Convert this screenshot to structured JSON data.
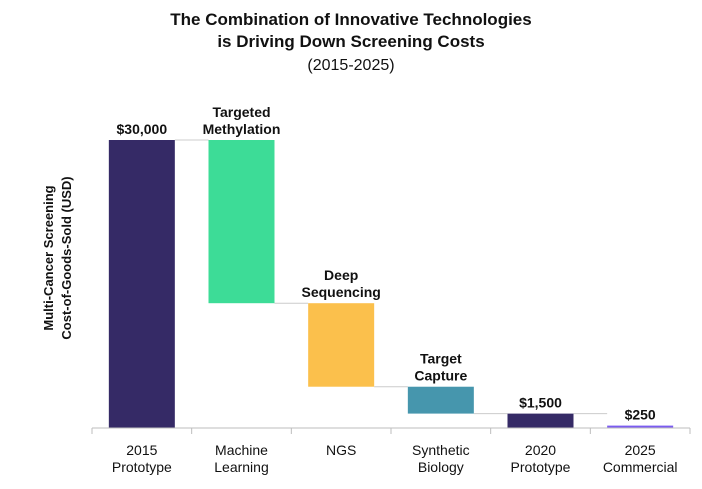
{
  "chart_data": {
    "type": "bar",
    "subtype": "waterfall",
    "title": [
      "The Combination of Innovative Technologies",
      "is Driving Down Screening Costs"
    ],
    "subtitle": "(2015-2025)",
    "ylabel": [
      "Multi-Cancer Screening",
      "Cost-of-Goods-Sold (USD)"
    ],
    "xlabel": "",
    "categories": [
      [
        "2015",
        "Prototype"
      ],
      [
        "Machine",
        "Learning"
      ],
      [
        "NGS"
      ],
      [
        "Synthetic",
        "Biology"
      ],
      [
        "2020",
        "Prototype"
      ],
      [
        "2025",
        "Commercial"
      ]
    ],
    "bars": [
      {
        "kind": "total",
        "start": 0,
        "end": 30000,
        "color": "#352a66",
        "label": [
          "$30,000"
        ]
      },
      {
        "kind": "step",
        "start": 30000,
        "end": 13000,
        "color": "#3ddc97",
        "label": [
          "Targeted",
          "Methylation"
        ]
      },
      {
        "kind": "step",
        "start": 13000,
        "end": 4300,
        "color": "#fbc04c",
        "label": [
          "Deep",
          "Sequencing"
        ]
      },
      {
        "kind": "step",
        "start": 4300,
        "end": 1500,
        "color": "#4696ad",
        "label": [
          "Target",
          "Capture"
        ]
      },
      {
        "kind": "total",
        "start": 0,
        "end": 1500,
        "color": "#352a66",
        "label": [
          "$1,500"
        ]
      },
      {
        "kind": "total",
        "start": 0,
        "end": 250,
        "color": "#7b5cf0",
        "label": [
          "$250"
        ]
      }
    ],
    "ylim": [
      0,
      30000
    ],
    "grid": false,
    "legend": "none"
  }
}
